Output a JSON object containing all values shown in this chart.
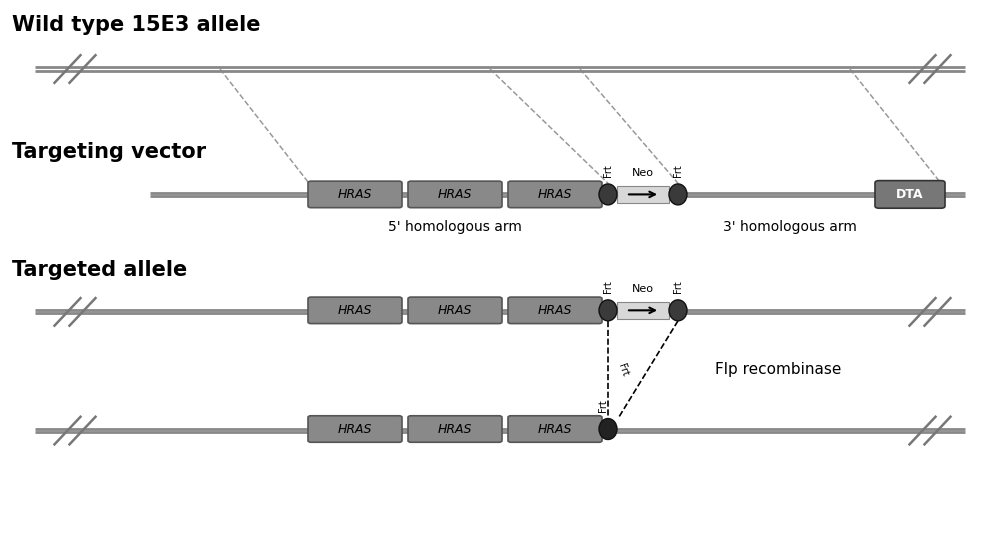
{
  "bg_color": "#ffffff",
  "title_wild": "Wild type 15E3 allele",
  "title_vector": "Targeting vector",
  "title_targeted": "Targeted allele",
  "label_5prime": "5' homologous arm",
  "label_3prime": "3' homologous arm",
  "label_flp": "Flp recombinase",
  "label_neo": "Neo",
  "label_frt": "Frt",
  "label_dta": "DTA",
  "label_hras": "HRAS",
  "hras_color": "#898989",
  "line_color": "#888888",
  "frt_color_dark": "#333333",
  "neo_box_color": "#d8d8d8",
  "dta_box_color": "#777777",
  "dashed_color": "#999999",
  "font_size_title": 15,
  "font_size_label": 10,
  "font_size_neo": 8,
  "font_size_frt": 7,
  "font_size_hras": 9,
  "fig_width": 10.0,
  "fig_height": 5.52
}
